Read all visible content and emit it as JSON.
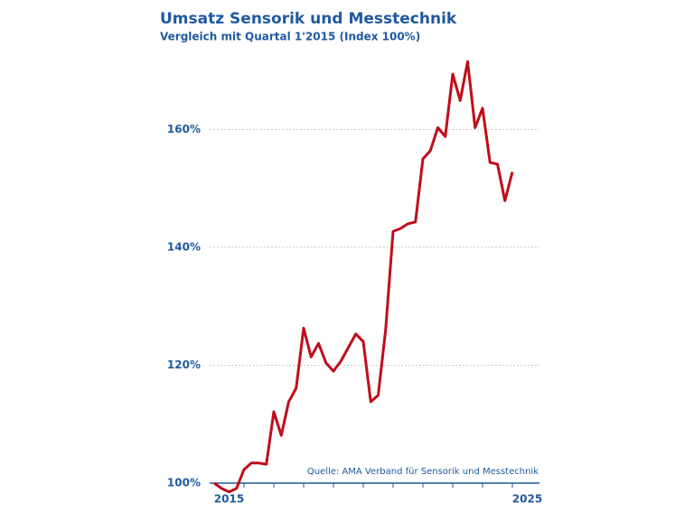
{
  "chart_data": {
    "type": "line",
    "title": "Umsatz Sensorik und Messtechnik",
    "subtitle": "Vergleich mit Quartal 1'2015 (Index 100%)",
    "source": "Quelle: AMA Verband für Sensorik und Messtechnik",
    "x": [
      2015,
      2015.25,
      2015.5,
      2015.75,
      2016,
      2016.25,
      2016.5,
      2016.75,
      2017,
      2017.25,
      2017.5,
      2017.75,
      2018,
      2018.25,
      2018.5,
      2018.75,
      2019,
      2019.25,
      2019.5,
      2019.75,
      2020,
      2020.25,
      2020.5,
      2020.75,
      2021,
      2021.25,
      2021.5,
      2021.75,
      2022,
      2022.25,
      2022.5,
      2022.75,
      2023,
      2023.25,
      2023.5,
      2023.75,
      2024,
      2024.25,
      2024.5,
      2024.75,
      2025
    ],
    "series": [
      {
        "color": "#c00d1a",
        "values": [
          100,
          99.1,
          98.5,
          99.1,
          102.3,
          103.4,
          103.4,
          103.2,
          112.1,
          108.1,
          113.8,
          116.1,
          126.3,
          121.4,
          123.7,
          120.4,
          119.0,
          120.7,
          123.0,
          125.3,
          124.0,
          113.8,
          114.9,
          126.0,
          142.7,
          143.2,
          144.0,
          144.3,
          155.0,
          156.4,
          160.3,
          158.8,
          169.4,
          164.9,
          171.5,
          160.3,
          163.6,
          154.4,
          154.1,
          147.9,
          152.8
        ]
      }
    ],
    "xlim": [
      2015,
      2026
    ],
    "xticks": [
      {
        "value": 2015.5,
        "label": "2015"
      },
      {
        "value": 2025.5,
        "label": "2025"
      }
    ],
    "xtick_marks": [
      2016,
      2017,
      2018,
      2019,
      2020,
      2021,
      2022,
      2023,
      2024,
      2025
    ],
    "ylim": [
      100,
      172
    ],
    "yticks": [
      {
        "value": 100,
        "label": "100%"
      },
      {
        "value": 120,
        "label": "120%"
      },
      {
        "value": 140,
        "label": "140%"
      },
      {
        "value": 160,
        "label": "160%"
      }
    ],
    "grid": true
  }
}
